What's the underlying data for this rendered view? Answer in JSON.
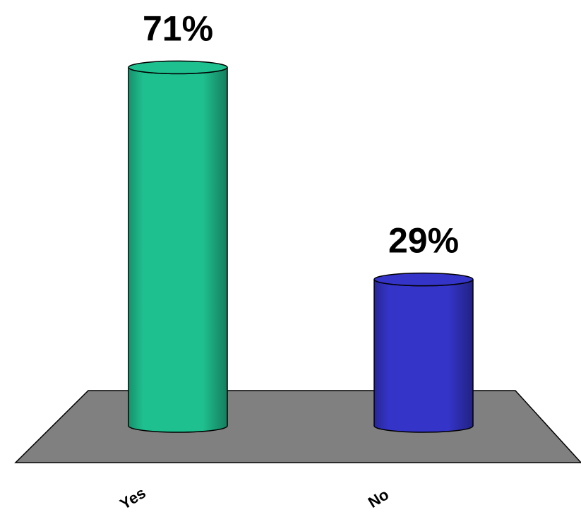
{
  "chart_data": {
    "type": "bar3d",
    "categories": [
      "Yes",
      "No"
    ],
    "values": [
      71,
      29
    ],
    "value_labels": [
      "71%",
      "29%"
    ],
    "colors": [
      "#1fc08f",
      "#3434c8"
    ]
  }
}
